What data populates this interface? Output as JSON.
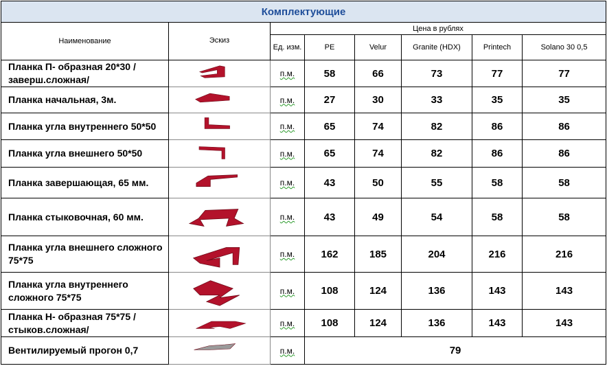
{
  "title": "Комплектующие",
  "headers": {
    "name": "Наименование",
    "sketch": "Эскиз",
    "price_group": "Цена в рублях",
    "unit": "Ед. изм.",
    "columns": [
      "PE",
      "Velur",
      "Granite (HDX)",
      "Printech",
      "Solano 30  0,5"
    ]
  },
  "colors": {
    "title_bg": "#dbe5f1",
    "title_text": "#1f4e9a",
    "sketch_red": "#b3122b"
  },
  "rows": [
    {
      "name": "Планка П- образная 20*30 /заверш.сложная/",
      "unit": "п.м.",
      "prices": [
        "58",
        "66",
        "73",
        "77",
        "77"
      ]
    },
    {
      "name": "Планка начальная, 3м.",
      "unit": "п.м.",
      "prices": [
        "27",
        "30",
        "33",
        "35",
        "35"
      ]
    },
    {
      "name": "Планка угла внутреннего 50*50",
      "unit": "п.м.",
      "prices": [
        "65",
        "74",
        "82",
        "86",
        "86"
      ]
    },
    {
      "name": "Планка угла внешнего 50*50",
      "unit": "п.м.",
      "prices": [
        "65",
        "74",
        "82",
        "86",
        "86"
      ]
    },
    {
      "name": "Планка завершающая, 65 мм.",
      "unit": "п.м.",
      "prices": [
        "43",
        "50",
        "55",
        "58",
        "58"
      ]
    },
    {
      "name": "Планка стыковочная, 60 мм.",
      "unit": "п.м.",
      "prices": [
        "43",
        "49",
        "54",
        "58",
        "58"
      ]
    },
    {
      "name": "Планка угла внешнего сложного 75*75",
      "unit": "п.м.",
      "prices": [
        "162",
        "185",
        "204",
        "216",
        "216"
      ]
    },
    {
      "name": "Планка угла внутреннего сложного 75*75",
      "unit": "п.м.",
      "prices": [
        "108",
        "124",
        "136",
        "143",
        "143"
      ]
    },
    {
      "name": "Планка Н- образная 75*75 /стыков.сложная/",
      "unit": "п.м.",
      "prices": [
        "108",
        "124",
        "136",
        "143",
        "143"
      ]
    },
    {
      "name": "Вентилируемый прогон 0,7",
      "unit": "п.м.",
      "merged_price": "79"
    }
  ]
}
